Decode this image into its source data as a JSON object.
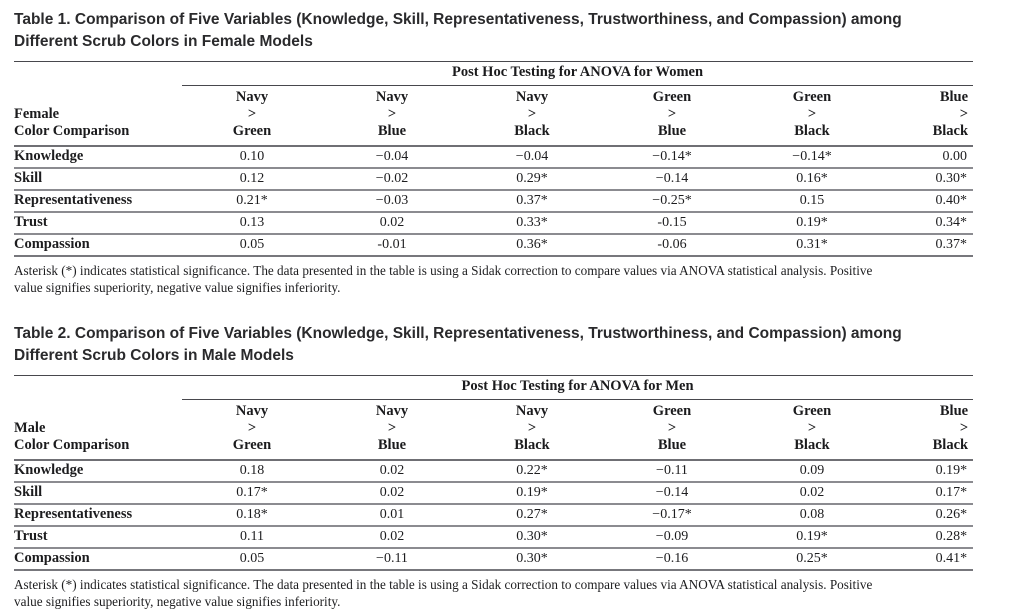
{
  "document": {
    "background": "#ffffff",
    "text_color": "#1d1d1f",
    "rule_dark": "#48484d",
    "rule_gray": "#8b8b90"
  },
  "tables": [
    {
      "title_lines": [
        "Table 1. Comparison of Five Variables (Knowledge, Skill, Representativeness, Trustworthiness, and Compassion) among",
        "Different Scrub Colors in Female Models"
      ],
      "spanner": "Post Hoc Testing for ANOVA for Women",
      "stub": [
        "Female",
        "Color Comparison"
      ],
      "columns": [
        [
          "Navy",
          ">",
          "Green"
        ],
        [
          "Navy",
          ">",
          "Blue"
        ],
        [
          "Navy",
          ">",
          "Black"
        ],
        [
          "Green",
          ">",
          "Blue"
        ],
        [
          "Green",
          ">",
          "Black"
        ],
        [
          "Blue",
          ">",
          "Black"
        ]
      ],
      "rows": [
        {
          "label": "Knowledge",
          "values": [
            "0.10",
            "−0.04",
            "−0.04",
            "−0.14*",
            "−0.14*",
            "0.00"
          ]
        },
        {
          "label": "Skill",
          "values": [
            "0.12",
            "−0.02",
            "0.29*",
            "−0.14",
            "0.16*",
            "0.30*"
          ]
        },
        {
          "label": "Representativeness",
          "values": [
            "0.21*",
            "−0.03",
            "0.37*",
            "−0.25*",
            "0.15",
            "0.40*"
          ]
        },
        {
          "label": "Trust",
          "values": [
            "0.13",
            "0.02",
            "0.33*",
            "-0.15",
            "0.19*",
            "0.34*"
          ]
        },
        {
          "label": "Compassion",
          "values": [
            "0.05",
            "-0.01",
            "0.36*",
            "-0.06",
            "0.31*",
            "0.37*"
          ]
        }
      ],
      "footnote_lines": [
        "Asterisk (*) indicates statistical significance. The data presented in the table is using a Sidak correction to compare values via ANOVA statistical analysis. Positive",
        "value signifies superiority, negative value signifies inferiority."
      ]
    },
    {
      "title_lines": [
        "Table 2. Comparison of Five Variables (Knowledge, Skill, Representativeness, Trustworthiness, and Compassion) among",
        "Different Scrub Colors in Male Models"
      ],
      "spanner": "Post Hoc Testing for ANOVA for Men",
      "stub": [
        "Male",
        "Color Comparison"
      ],
      "columns": [
        [
          "Navy",
          ">",
          "Green"
        ],
        [
          "Navy",
          ">",
          "Blue"
        ],
        [
          "Navy",
          ">",
          "Black"
        ],
        [
          "Green",
          ">",
          "Blue"
        ],
        [
          "Green",
          ">",
          "Black"
        ],
        [
          "Blue",
          ">",
          "Black"
        ]
      ],
      "rows": [
        {
          "label": "Knowledge",
          "values": [
            "0.18",
            "0.02",
            "0.22*",
            "−0.11",
            "0.09",
            "0.19*"
          ]
        },
        {
          "label": "Skill",
          "values": [
            "0.17*",
            "0.02",
            "0.19*",
            "−0.14",
            "0.02",
            "0.17*"
          ]
        },
        {
          "label": "Representativeness",
          "values": [
            "0.18*",
            "0.01",
            "0.27*",
            "−0.17*",
            "0.08",
            "0.26*"
          ]
        },
        {
          "label": "Trust",
          "values": [
            "0.11",
            "0.02",
            "0.30*",
            "−0.09",
            "0.19*",
            "0.28*"
          ]
        },
        {
          "label": "Compassion",
          "values": [
            "0.05",
            "−0.11",
            "0.30*",
            "−0.16",
            "0.25*",
            "0.41*"
          ]
        }
      ],
      "footnote_lines": [
        "Asterisk (*) indicates statistical significance. The data presented in the table is using a Sidak correction to compare values via ANOVA statistical analysis. Positive",
        "value signifies superiority, negative value signifies inferiority."
      ]
    }
  ]
}
